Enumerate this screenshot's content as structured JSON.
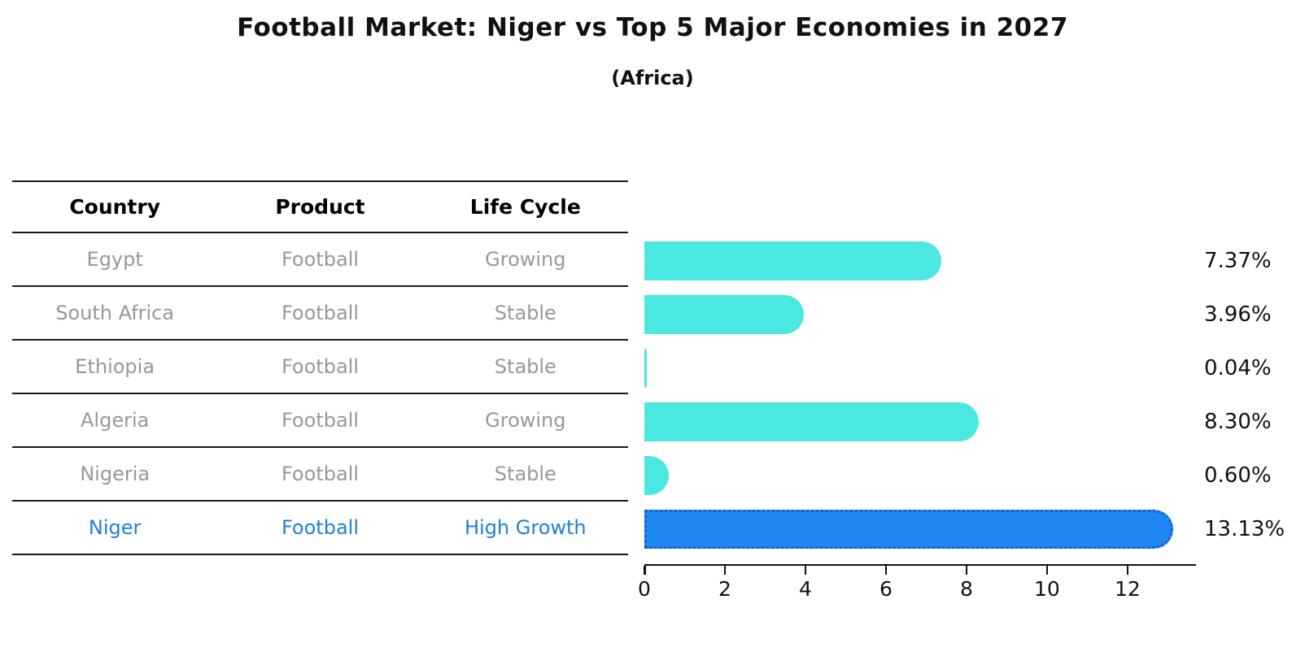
{
  "title": "Football Market: Niger vs Top 5 Major Economies in 2027",
  "subtitle": "(Africa)",
  "colors": {
    "bar_default": "#4be8e2",
    "bar_highlight_fill": "#1e87f0",
    "bar_highlight_border": "#1261ce",
    "table_text": "#989898",
    "table_highlight_text": "#1f7fdd",
    "axis_text": "#111111"
  },
  "table": {
    "columns": [
      "Country",
      "Product",
      "Life Cycle"
    ],
    "rows": [
      {
        "country": "Egypt",
        "product": "Football",
        "life_cycle": "Growing",
        "highlight": false
      },
      {
        "country": "South Africa",
        "product": "Football",
        "life_cycle": "Stable",
        "highlight": false
      },
      {
        "country": "Ethiopia",
        "product": "Football",
        "life_cycle": "Stable",
        "highlight": false
      },
      {
        "country": "Algeria",
        "product": "Football",
        "life_cycle": "Growing",
        "highlight": false
      },
      {
        "country": "Nigeria",
        "product": "Football",
        "life_cycle": "Stable",
        "highlight": false
      },
      {
        "country": "Niger",
        "product": "Football",
        "life_cycle": "High Growth",
        "highlight": true
      }
    ]
  },
  "chart_data": {
    "type": "bar",
    "orientation": "horizontal",
    "title": "Football Market: Niger vs Top 5 Major Economies in 2027",
    "subtitle": "(Africa)",
    "categories": [
      "Egypt",
      "South Africa",
      "Ethiopia",
      "Algeria",
      "Nigeria",
      "Niger"
    ],
    "values": [
      7.37,
      3.96,
      0.04,
      8.3,
      0.6,
      13.13
    ],
    "value_labels": [
      "7.37%",
      "3.96%",
      "0.04%",
      "8.30%",
      "0.60%",
      "13.13%"
    ],
    "highlight_index": 5,
    "xlabel": "",
    "ylabel": "",
    "xlim": [
      0,
      13.7
    ],
    "xticks": [
      0,
      2,
      4,
      6,
      8,
      10,
      12
    ],
    "grid": false,
    "legend": false
  }
}
